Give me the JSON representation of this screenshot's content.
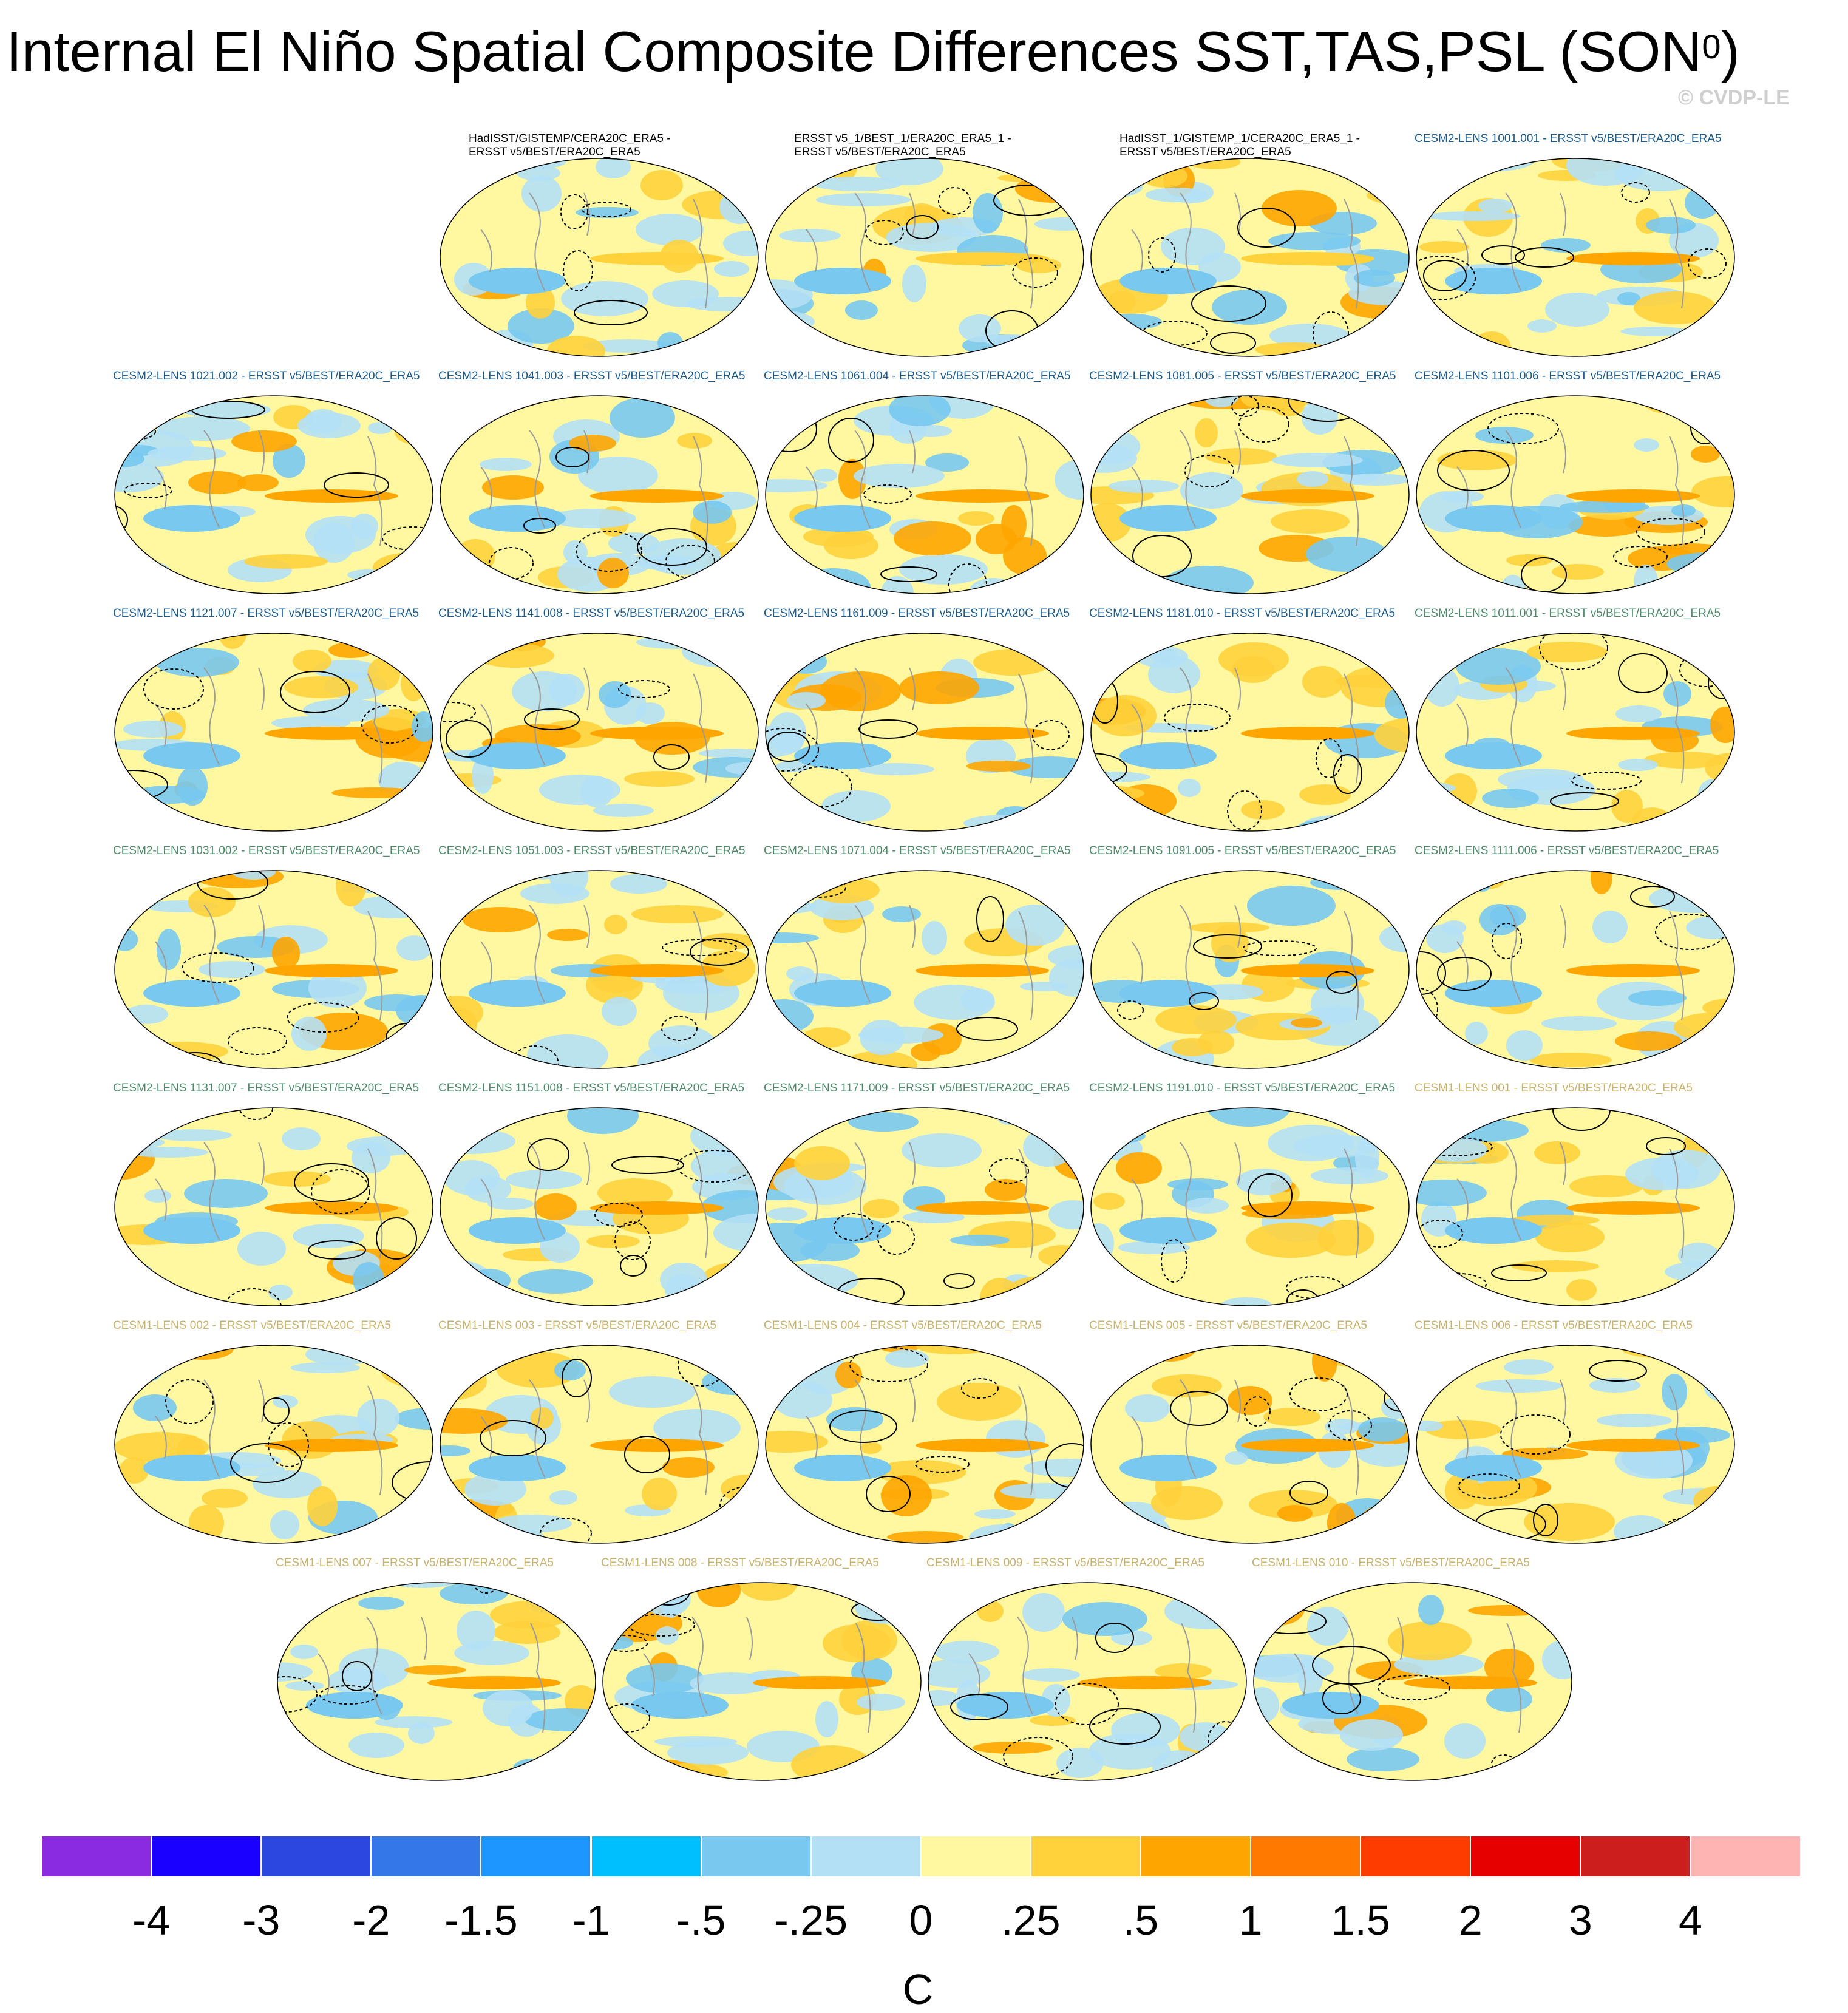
{
  "title": "Internal El Niño Spatial Composite Differences SST,TAS,PSL (SON",
  "title_superscript": "0",
  "title_suffix": ")",
  "copyright": "© CVDP-LE",
  "panels": [
    {
      "label": "HadISST/GISTEMP/CERA20C_ERA5 -",
      "label2": "ERSST v5/BEST/ERA20C_ERA5",
      "group": "obs",
      "row": 0,
      "col": 1
    },
    {
      "label": "ERSST v5_1/BEST_1/ERA20C_ERA5_1 -",
      "label2": "ERSST v5/BEST/ERA20C_ERA5",
      "group": "obs",
      "row": 0,
      "col": 2
    },
    {
      "label": "HadISST_1/GISTEMP_1/CERA20C_ERA5_1 -",
      "label2": "ERSST v5/BEST/ERA20C_ERA5",
      "group": "obs",
      "row": 0,
      "col": 3
    },
    {
      "label": "CESM2-LENS 1001.001 - ERSST v5/BEST/ERA20C_ERA5",
      "group": "c2a",
      "row": 0,
      "col": 4
    },
    {
      "label": "CESM2-LENS 1021.002 - ERSST v5/BEST/ERA20C_ERA5",
      "group": "c2a",
      "row": 1,
      "col": 0
    },
    {
      "label": "CESM2-LENS 1041.003 - ERSST v5/BEST/ERA20C_ERA5",
      "group": "c2a",
      "row": 1,
      "col": 1
    },
    {
      "label": "CESM2-LENS 1061.004 - ERSST v5/BEST/ERA20C_ERA5",
      "group": "c2a",
      "row": 1,
      "col": 2
    },
    {
      "label": "CESM2-LENS 1081.005 - ERSST v5/BEST/ERA20C_ERA5",
      "group": "c2a",
      "row": 1,
      "col": 3
    },
    {
      "label": "CESM2-LENS 1101.006 - ERSST v5/BEST/ERA20C_ERA5",
      "group": "c2a",
      "row": 1,
      "col": 4
    },
    {
      "label": "CESM2-LENS 1121.007 - ERSST v5/BEST/ERA20C_ERA5",
      "group": "c2a",
      "row": 2,
      "col": 0
    },
    {
      "label": "CESM2-LENS 1141.008 - ERSST v5/BEST/ERA20C_ERA5",
      "group": "c2a",
      "row": 2,
      "col": 1
    },
    {
      "label": "CESM2-LENS 1161.009 - ERSST v5/BEST/ERA20C_ERA5",
      "group": "c2a",
      "row": 2,
      "col": 2
    },
    {
      "label": "CESM2-LENS 1181.010 - ERSST v5/BEST/ERA20C_ERA5",
      "group": "c2a",
      "row": 2,
      "col": 3
    },
    {
      "label": "CESM2-LENS 1011.001 - ERSST v5/BEST/ERA20C_ERA5",
      "group": "c2b",
      "row": 2,
      "col": 4
    },
    {
      "label": "CESM2-LENS 1031.002 - ERSST v5/BEST/ERA20C_ERA5",
      "group": "c2b",
      "row": 3,
      "col": 0
    },
    {
      "label": "CESM2-LENS 1051.003 - ERSST v5/BEST/ERA20C_ERA5",
      "group": "c2b",
      "row": 3,
      "col": 1
    },
    {
      "label": "CESM2-LENS 1071.004 - ERSST v5/BEST/ERA20C_ERA5",
      "group": "c2b",
      "row": 3,
      "col": 2
    },
    {
      "label": "CESM2-LENS 1091.005 - ERSST v5/BEST/ERA20C_ERA5",
      "group": "c2b",
      "row": 3,
      "col": 3
    },
    {
      "label": "CESM2-LENS 1111.006 - ERSST v5/BEST/ERA20C_ERA5",
      "group": "c2b",
      "row": 3,
      "col": 4
    },
    {
      "label": "CESM2-LENS 1131.007 - ERSST v5/BEST/ERA20C_ERA5",
      "group": "c2b",
      "row": 4,
      "col": 0
    },
    {
      "label": "CESM2-LENS 1151.008 - ERSST v5/BEST/ERA20C_ERA5",
      "group": "c2b",
      "row": 4,
      "col": 1
    },
    {
      "label": "CESM2-LENS 1171.009 - ERSST v5/BEST/ERA20C_ERA5",
      "group": "c2b",
      "row": 4,
      "col": 2
    },
    {
      "label": "CESM2-LENS 1191.010 - ERSST v5/BEST/ERA20C_ERA5",
      "group": "c2b",
      "row": 4,
      "col": 3
    },
    {
      "label": "CESM1-LENS 001 - ERSST v5/BEST/ERA20C_ERA5",
      "group": "c1",
      "row": 4,
      "col": 4
    },
    {
      "label": "CESM1-LENS 002 - ERSST v5/BEST/ERA20C_ERA5",
      "group": "c1",
      "row": 5,
      "col": 0
    },
    {
      "label": "CESM1-LENS 003 - ERSST v5/BEST/ERA20C_ERA5",
      "group": "c1",
      "row": 5,
      "col": 1
    },
    {
      "label": "CESM1-LENS 004 - ERSST v5/BEST/ERA20C_ERA5",
      "group": "c1",
      "row": 5,
      "col": 2
    },
    {
      "label": "CESM1-LENS 005 - ERSST v5/BEST/ERA20C_ERA5",
      "group": "c1",
      "row": 5,
      "col": 3
    },
    {
      "label": "CESM1-LENS 006 - ERSST v5/BEST/ERA20C_ERA5",
      "group": "c1",
      "row": 5,
      "col": 4
    },
    {
      "label": "CESM1-LENS 007 - ERSST v5/BEST/ERA20C_ERA5",
      "group": "c1",
      "row": 6,
      "col": 0.5
    },
    {
      "label": "CESM1-LENS 008 - ERSST v5/BEST/ERA20C_ERA5",
      "group": "c1",
      "row": 6,
      "col": 1.5
    },
    {
      "label": "CESM1-LENS 009 - ERSST v5/BEST/ERA20C_ERA5",
      "group": "c1",
      "row": 6,
      "col": 2.5
    },
    {
      "label": "CESM1-LENS 010 - ERSST v5/BEST/ERA20C_ERA5",
      "group": "c1",
      "row": 6,
      "col": 3.5
    }
  ],
  "colorbar": {
    "units": "C",
    "colors": [
      "#8a2be2",
      "#1a00ff",
      "#2c46e0",
      "#3378e6",
      "#1e96ff",
      "#00bfff",
      "#78c8f0",
      "#b4e0f5",
      "#fff8a0",
      "#ffd23c",
      "#ffa500",
      "#ff7800",
      "#ff3c00",
      "#e60000",
      "#cd1e1e",
      "#ffb4b4"
    ],
    "ticks": [
      "-4",
      "-3",
      "-2",
      "-1.5",
      "-1",
      "-.5",
      "-.25",
      "0",
      ".25",
      ".5",
      "1",
      "1.5",
      "2",
      "3",
      "4"
    ]
  }
}
